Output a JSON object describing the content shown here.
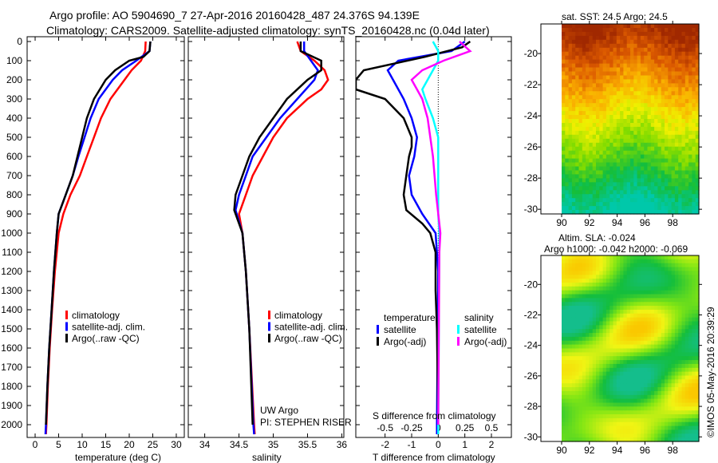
{
  "title": {
    "line1": "Argo profile: AO 5904690_7 27-Apr-2016 20160428_487 24.376S 94.139E",
    "line2": "Climatology: CARS2009. Satellite-adjusted climatology: synTS_20160428.nc (0.04d later)"
  },
  "colors": {
    "climatology": "#ff0000",
    "satellite": "#0000ff",
    "argo": "#000000",
    "s_satellite": "#00ffff",
    "s_argo": "#ff00ff"
  },
  "depth_ticks": [
    "0",
    "100",
    "200",
    "300",
    "400",
    "500",
    "600",
    "700",
    "800",
    "900",
    "1000",
    "1100",
    "1200",
    "1300",
    "1400",
    "1500",
    "1600",
    "1700",
    "1800",
    "1900",
    "2000"
  ],
  "chart_data": [
    {
      "type": "line",
      "id": "temperature",
      "xlabel": "temperature (deg C)",
      "ylabel": "depth",
      "xlim": [
        -1.7,
        31.7
      ],
      "ylim": [
        2060,
        0
      ],
      "xticks": [
        "0",
        "5",
        "10",
        "15",
        "20",
        "25",
        "30"
      ],
      "legend": [
        "climatology",
        "satellite-adj. clim.",
        "Argo(..raw -QC)"
      ],
      "series": [
        {
          "name": "climatology",
          "color": "#ff0000",
          "depth": [
            0,
            50,
            100,
            150,
            200,
            300,
            400,
            500,
            600,
            700,
            800,
            900,
            1000,
            1200,
            1400,
            1600,
            1800,
            2000,
            2050
          ],
          "values": [
            23.5,
            23.4,
            22.5,
            20.5,
            19,
            16,
            14,
            12.5,
            11,
            9.5,
            7.5,
            6,
            5,
            4.2,
            3.6,
            3.1,
            2.7,
            2.4,
            2.3
          ]
        },
        {
          "name": "satellite-adj. clim.",
          "color": "#0000ff",
          "depth": [
            0,
            50,
            100,
            150,
            200,
            300,
            400,
            500,
            600,
            700,
            800,
            900,
            1000,
            1200,
            1400,
            1600,
            1800,
            2000,
            2050
          ],
          "values": [
            24.5,
            24.3,
            21.5,
            18.5,
            16.5,
            13.5,
            11.8,
            10.5,
            9.2,
            8,
            6.5,
            5,
            4.6,
            4,
            3.5,
            3,
            2.6,
            2.3,
            2.2
          ]
        },
        {
          "name": "Argo(..raw -QC)",
          "color": "#000000",
          "depth": [
            0,
            50,
            80,
            100,
            150,
            200,
            300,
            400,
            500,
            600,
            700,
            800,
            900,
            1000,
            1200,
            1400,
            1600,
            1800,
            2000
          ],
          "values": [
            24.5,
            24.3,
            23,
            20,
            17,
            15,
            12.5,
            11,
            10,
            9,
            8,
            6.5,
            5,
            4.6,
            4,
            3.5,
            3,
            2.6,
            2.3
          ]
        }
      ]
    },
    {
      "type": "line",
      "id": "salinity",
      "xlabel": "salinity",
      "ylabel": "depth",
      "xlim": [
        33.76,
        36.03
      ],
      "ylim": [
        2060,
        0
      ],
      "xticks": [
        "34",
        "34.5",
        "35",
        "35.5",
        "36"
      ],
      "legend": [
        "climatology",
        "satellite-adj. clim.",
        "Argo(..raw -QC)"
      ],
      "annotation": [
        "UW Argo",
        "PI: STEPHEN RISER"
      ],
      "series": [
        {
          "name": "climatology",
          "color": "#ff0000",
          "depth": [
            0,
            50,
            100,
            150,
            200,
            250,
            300,
            400,
            500,
            600,
            700,
            800,
            900,
            1000,
            1200,
            1500,
            2000,
            2050
          ],
          "values": [
            35.35,
            35.4,
            35.6,
            35.75,
            35.8,
            35.7,
            35.5,
            35.2,
            35.0,
            34.85,
            34.7,
            34.6,
            34.5,
            34.55,
            34.6,
            34.65,
            34.72,
            34.73
          ]
        },
        {
          "name": "satellite-adj. clim.",
          "color": "#0000ff",
          "depth": [
            0,
            50,
            100,
            150,
            200,
            300,
            400,
            500,
            600,
            700,
            800,
            880,
            1000,
            1200,
            1500,
            2000,
            2050
          ],
          "values": [
            35.45,
            35.45,
            35.55,
            35.65,
            35.6,
            35.35,
            35.1,
            34.9,
            34.7,
            34.6,
            34.5,
            34.45,
            34.55,
            34.6,
            34.65,
            34.71,
            34.72
          ]
        },
        {
          "name": "Argo(..raw -QC)",
          "color": "#000000",
          "depth": [
            0,
            50,
            100,
            150,
            200,
            300,
            400,
            500,
            600,
            700,
            800,
            880,
            950,
            1000,
            1200,
            1500,
            2000
          ],
          "values": [
            35.4,
            35.4,
            35.7,
            35.7,
            35.5,
            35.2,
            35.0,
            34.8,
            34.65,
            34.55,
            34.45,
            34.43,
            34.5,
            34.55,
            34.6,
            34.65,
            34.7
          ]
        }
      ]
    },
    {
      "type": "line",
      "id": "difference",
      "xlabel": "T difference from climatology",
      "x2label": "S difference from climatology",
      "xlim": [
        -3.1,
        2.75
      ],
      "ylim": [
        2060,
        0
      ],
      "xticks": [
        "-2",
        "-1",
        "0",
        "1",
        "2"
      ],
      "x2ticks": [
        "-0.5",
        "-0.25",
        "0",
        "0.25",
        "0.5"
      ],
      "legend_headers": [
        "temperature",
        "salinity"
      ],
      "legend": [
        "satellite",
        "Argo(-adj)",
        "satellite",
        "Argo(-adj)"
      ],
      "series": [
        {
          "name": "T satellite",
          "color": "#0000ff",
          "units": "T",
          "depth": [
            0,
            50,
            100,
            150,
            200,
            300,
            400,
            500,
            600,
            700,
            800,
            900,
            1000,
            1200,
            2000,
            2050
          ],
          "values": [
            1.0,
            0.5,
            -1.5,
            -1.9,
            -1.7,
            -1.3,
            -1.0,
            -0.8,
            -0.9,
            -1.1,
            -1.0,
            -0.6,
            -0.1,
            0,
            -0.05,
            -0.05
          ]
        },
        {
          "name": "T Argo(-adj)",
          "color": "#000000",
          "units": "T",
          "depth": [
            0,
            30,
            80,
            150,
            200,
            250,
            300,
            400,
            500,
            550,
            600,
            700,
            800,
            880,
            950,
            1000,
            1100,
            1300,
            1500,
            2000
          ],
          "values": [
            1.2,
            0.9,
            -0.5,
            -2.8,
            -3.1,
            -3.1,
            -2,
            -1.3,
            -1.0,
            -1.0,
            -1.1,
            -1.2,
            -1.3,
            -1.2,
            -0.6,
            -0.3,
            -0.1,
            -0.1,
            -0.05,
            0
          ]
        },
        {
          "name": "S satellite",
          "color": "#00ffff",
          "units": "S",
          "depth": [
            0,
            50,
            100,
            150,
            200,
            250,
            300,
            400,
            500,
            700,
            900,
            1000,
            2000,
            2050
          ],
          "values": [
            -0.05,
            0.0,
            0.0,
            -0.05,
            -0.1,
            -0.15,
            -0.12,
            -0.05,
            0.0,
            0.0,
            0.0,
            0.01,
            0,
            0
          ]
        },
        {
          "name": "S Argo(-adj)",
          "color": "#ff00ff",
          "units": "S",
          "depth": [
            0,
            50,
            100,
            150,
            200,
            250,
            300,
            400,
            600,
            800,
            1000,
            1100,
            2000
          ],
          "values": [
            0.2,
            0.3,
            0.05,
            -0.15,
            -0.25,
            -0.2,
            -0.15,
            -0.1,
            -0.05,
            -0.02,
            0.02,
            0.01,
            0
          ]
        }
      ]
    },
    {
      "type": "heatmap",
      "id": "sst-map",
      "title": "sat. SST: 24.5 Argo: 24.5",
      "xticks": [
        "90",
        "92",
        "94",
        "96",
        "98"
      ],
      "yticks": [
        "-20",
        "-22",
        "-24",
        "-26",
        "-28",
        "-30"
      ]
    },
    {
      "type": "heatmap",
      "id": "sla-map",
      "title": "Altim. SLA: -0.024",
      "subtitle": "Argo h1000: -0.042 h2000: -0.069",
      "xticks": [
        "90",
        "92",
        "94",
        "96",
        "98"
      ],
      "yticks": [
        "-20",
        "-22",
        "-24",
        "-26",
        "-28",
        "-30"
      ]
    }
  ],
  "footer": {
    "credit": "©IMOS 05-May-2016 20:39:29"
  }
}
